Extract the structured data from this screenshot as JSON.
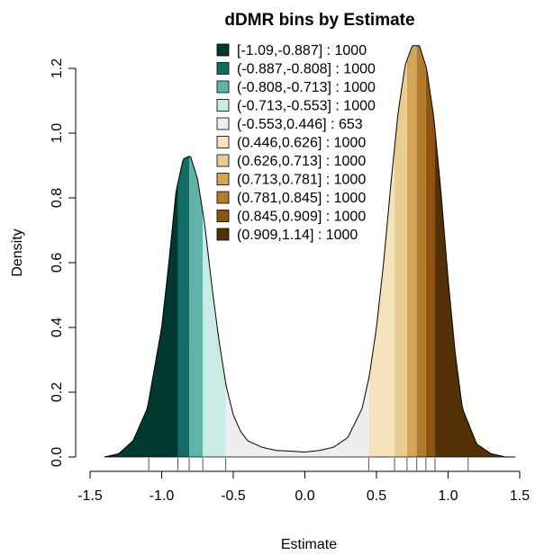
{
  "chart_data": {
    "type": "area",
    "title": "dDMR bins by Estimate",
    "xlabel": "Estimate",
    "ylabel": "Density",
    "xlim": [
      -1.5,
      1.5
    ],
    "ylim": [
      0,
      1.3
    ],
    "xticks": [
      -1.5,
      -1.0,
      -0.5,
      0.0,
      0.5,
      1.0,
      1.5
    ],
    "xtick_labels": [
      "-1.5",
      "-1.0",
      "-0.5",
      "0.0",
      "0.5",
      "1.0",
      "1.5"
    ],
    "yticks": [
      0.0,
      0.2,
      0.4,
      0.6,
      0.8,
      1.0,
      1.2
    ],
    "ytick_labels": [
      "0.0",
      "0.2",
      "0.4",
      "0.6",
      "0.8",
      "1.0",
      "1.2"
    ],
    "legend_position": "top-center",
    "density_curve": {
      "x": [
        -1.4,
        -1.3,
        -1.2,
        -1.1,
        -1.0,
        -0.95,
        -0.9,
        -0.85,
        -0.8,
        -0.75,
        -0.7,
        -0.65,
        -0.6,
        -0.55,
        -0.5,
        -0.45,
        -0.4,
        -0.3,
        -0.2,
        -0.1,
        0.0,
        0.1,
        0.2,
        0.3,
        0.4,
        0.45,
        0.5,
        0.55,
        0.6,
        0.65,
        0.7,
        0.75,
        0.8,
        0.85,
        0.9,
        0.95,
        1.0,
        1.05,
        1.1,
        1.2,
        1.3,
        1.4,
        1.47
      ],
      "y": [
        0.0,
        0.01,
        0.05,
        0.15,
        0.4,
        0.6,
        0.82,
        0.92,
        0.93,
        0.86,
        0.72,
        0.53,
        0.36,
        0.22,
        0.13,
        0.08,
        0.05,
        0.03,
        0.02,
        0.018,
        0.015,
        0.02,
        0.03,
        0.06,
        0.15,
        0.25,
        0.4,
        0.6,
        0.84,
        1.06,
        1.21,
        1.27,
        1.27,
        1.2,
        1.05,
        0.82,
        0.55,
        0.32,
        0.15,
        0.04,
        0.01,
        0.0,
        0.0
      ]
    },
    "bins": [
      {
        "label": "[-1.09,-0.887] : 1000",
        "from": -1.4,
        "to": -0.887,
        "color": "#01382f"
      },
      {
        "label": "(-0.887,-0.808] : 1000",
        "from": -0.887,
        "to": -0.808,
        "color": "#0f6d63"
      },
      {
        "label": "(-0.808,-0.713] : 1000",
        "from": -0.808,
        "to": -0.713,
        "color": "#5fb3a8"
      },
      {
        "label": "(-0.713,-0.553] : 1000",
        "from": -0.713,
        "to": -0.553,
        "color": "#c8ebe4"
      },
      {
        "label": "(-0.553,0.446] : 653",
        "from": -0.553,
        "to": 0.446,
        "color": "#eeeeee"
      },
      {
        "label": "(0.446,0.626] : 1000",
        "from": 0.446,
        "to": 0.626,
        "color": "#f4e3bd"
      },
      {
        "label": "(0.626,0.713] : 1000",
        "from": 0.626,
        "to": 0.713,
        "color": "#e8cd92"
      },
      {
        "label": "(0.713,0.781] : 1000",
        "from": 0.713,
        "to": 0.781,
        "color": "#d2a55a"
      },
      {
        "label": "(0.781,0.845] : 1000",
        "from": 0.781,
        "to": 0.845,
        "color": "#b67a2b"
      },
      {
        "label": "(0.845,0.909] : 1000",
        "from": 0.845,
        "to": 0.909,
        "color": "#8d5413"
      },
      {
        "label": "(0.909,1.14] : 1000",
        "from": 0.909,
        "to": 1.47,
        "color": "#543005"
      }
    ],
    "rug_marks": [
      -1.09,
      -0.887,
      -0.808,
      -0.713,
      -0.553,
      0.446,
      0.626,
      0.713,
      0.781,
      0.845,
      0.909,
      1.14
    ]
  }
}
